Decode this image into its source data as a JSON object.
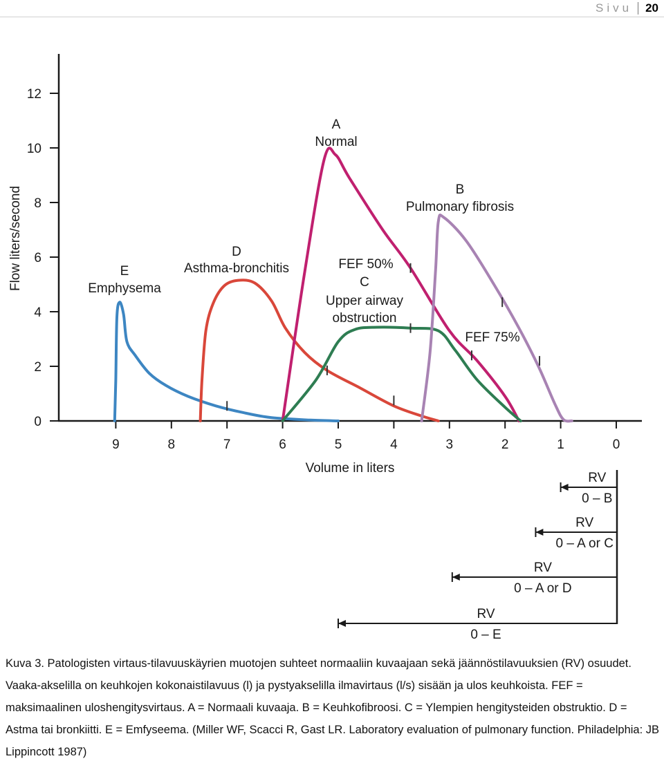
{
  "page_header": {
    "word": "Sivu",
    "number": "20"
  },
  "chart_data": {
    "type": "line",
    "xlabel": "Volume in liters",
    "ylabel": "Flow liters/second",
    "xlim": [
      0,
      9
    ],
    "x_reversed": true,
    "ylim": [
      0,
      12
    ],
    "x_ticks": [
      "9",
      "8",
      "7",
      "6",
      "5",
      "4",
      "3",
      "2",
      "1",
      "0"
    ],
    "y_ticks": [
      "0",
      "2",
      "4",
      "6",
      "8",
      "10",
      "12"
    ],
    "grid": false,
    "series": [
      {
        "id": "E",
        "name": "E",
        "sublabel": "Emphysema",
        "color": "#3d86c2",
        "points": [
          [
            9.02,
            0
          ],
          [
            9.0,
            1.5
          ],
          [
            8.98,
            3.8
          ],
          [
            8.93,
            4.35
          ],
          [
            8.86,
            3.9
          ],
          [
            8.8,
            2.9
          ],
          [
            8.65,
            2.4
          ],
          [
            8.4,
            1.75
          ],
          [
            8.1,
            1.3
          ],
          [
            7.7,
            0.9
          ],
          [
            7.2,
            0.55
          ],
          [
            6.7,
            0.3
          ],
          [
            6.2,
            0.12
          ],
          [
            5.5,
            0.03
          ],
          [
            5.0,
            0
          ]
        ],
        "marks": [
          [
            7.0,
            0.55
          ]
        ]
      },
      {
        "id": "D",
        "name": "D",
        "sublabel": "Asthma-bronchitis",
        "color": "#d9473a",
        "points": [
          [
            7.48,
            0
          ],
          [
            7.45,
            1.5
          ],
          [
            7.38,
            3.3
          ],
          [
            7.25,
            4.3
          ],
          [
            7.05,
            4.95
          ],
          [
            6.8,
            5.15
          ],
          [
            6.5,
            5.05
          ],
          [
            6.2,
            4.4
          ],
          [
            5.95,
            3.4
          ],
          [
            5.6,
            2.5
          ],
          [
            5.2,
            1.85
          ],
          [
            4.6,
            1.2
          ],
          [
            4.0,
            0.55
          ],
          [
            3.5,
            0.18
          ],
          [
            3.2,
            0
          ]
        ],
        "marks": [
          [
            5.2,
            1.85
          ],
          [
            4.0,
            0.75
          ]
        ]
      },
      {
        "id": "A",
        "name": "A",
        "sublabel": "Normal",
        "color": "#c0206f",
        "points": [
          [
            6.0,
            0
          ],
          [
            5.6,
            5.5
          ],
          [
            5.25,
            9.6
          ],
          [
            5.05,
            9.75
          ],
          [
            4.8,
            8.9
          ],
          [
            4.2,
            7.0
          ],
          [
            3.7,
            5.6
          ],
          [
            3.0,
            3.3
          ],
          [
            2.5,
            2.2
          ],
          [
            2.0,
            0.9
          ],
          [
            1.75,
            0
          ]
        ],
        "marks": [
          [
            3.7,
            5.6
          ],
          [
            2.6,
            2.4
          ]
        ]
      },
      {
        "id": "C",
        "name": "C",
        "sublabel": "Upper airway obstruction",
        "color": "#2e7d52",
        "points": [
          [
            6.0,
            0
          ],
          [
            5.4,
            1.5
          ],
          [
            5.0,
            2.9
          ],
          [
            4.7,
            3.35
          ],
          [
            4.3,
            3.43
          ],
          [
            3.7,
            3.4
          ],
          [
            3.2,
            3.3
          ],
          [
            2.9,
            2.6
          ],
          [
            2.5,
            1.5
          ],
          [
            2.0,
            0.5
          ],
          [
            1.72,
            0
          ]
        ],
        "marks": [
          [
            3.7,
            3.4
          ],
          [
            2.6,
            2.4
          ]
        ]
      },
      {
        "id": "B",
        "name": "B",
        "sublabel": "Pulmonary fibrosis",
        "color": "#a883b3",
        "points": [
          [
            3.5,
            0
          ],
          [
            3.35,
            2.5
          ],
          [
            3.25,
            5.5
          ],
          [
            3.2,
            7.3
          ],
          [
            3.1,
            7.45
          ],
          [
            2.7,
            6.6
          ],
          [
            2.2,
            5.0
          ],
          [
            1.75,
            3.4
          ],
          [
            1.4,
            2.0
          ],
          [
            1.1,
            0.6
          ],
          [
            0.95,
            0.05
          ],
          [
            0.8,
            0
          ]
        ],
        "marks": [
          [
            2.05,
            4.35
          ],
          [
            1.38,
            2.2
          ]
        ]
      }
    ],
    "annotations": [
      {
        "id": "fef50",
        "text": "FEF 50%"
      },
      {
        "id": "fef75",
        "text": "FEF 75%"
      }
    ],
    "rv_bars": [
      {
        "rv_label": "RV",
        "range_label": "0 – B",
        "from_liters": 1.0
      },
      {
        "rv_label": "RV",
        "range_label": "0 – A or C",
        "from_liters": 1.45
      },
      {
        "rv_label": "RV",
        "range_label": "0 – A or D",
        "from_liters": 2.95
      },
      {
        "rv_label": "RV",
        "range_label": "0 – E",
        "from_liters": 5.0
      }
    ]
  },
  "caption": {
    "text": "Kuva 3. Patologisten virtaus-tilavuuskäyrien muotojen suhteet normaaliin kuvaajaan sekä jäännöstilavuuksien (RV) osuudet. Vaaka-akselilla on keuhkojen kokonaistilavuus (l) ja pystyakselilla ilmavirtaus (l/s) sisään ja ulos keuhkoista. FEF = maksimaalinen uloshengitysvirtaus. A = Normaali kuvaaja. B = Keuhkofibroosi. C = Ylempien hengitysteiden obstruktio. D = Astma tai bronkiitti. E = Emfyseema. (Miller WF, Scacci R, Gast LR. Laboratory evaluation of pulmonary function. Philadelphia: JB Lippincott 1987)"
  }
}
